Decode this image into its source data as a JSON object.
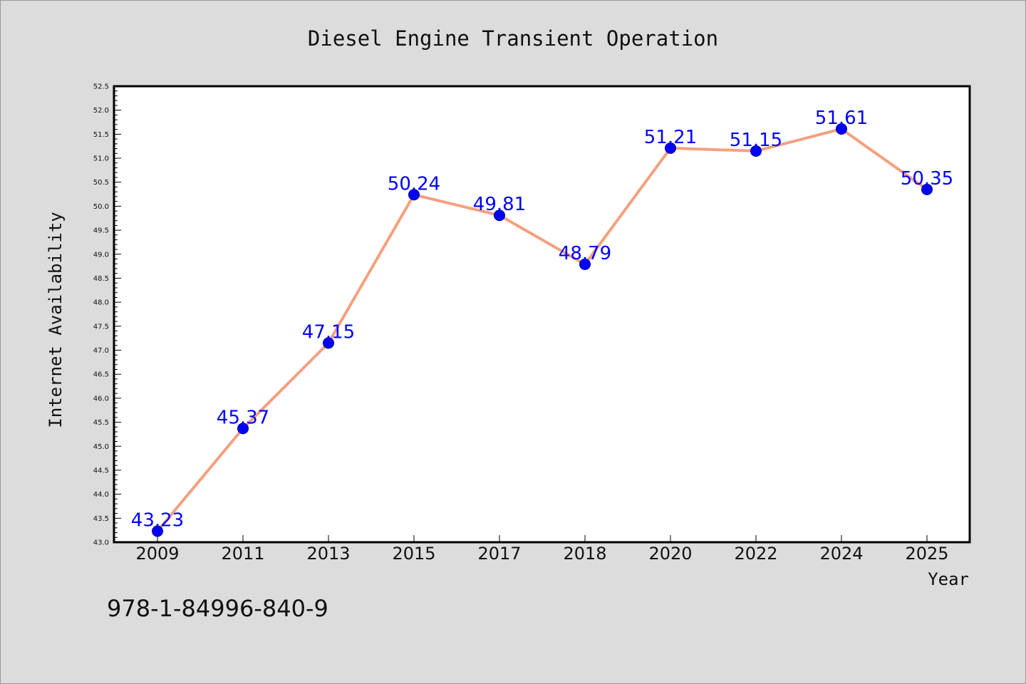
{
  "chart_data": {
    "type": "line",
    "title": "Diesel Engine Transient Operation",
    "xlabel": "Year",
    "ylabel": "Internet Availability",
    "categories": [
      "2009",
      "2011",
      "2013",
      "2015",
      "2017",
      "2018",
      "2020",
      "2022",
      "2024",
      "2025"
    ],
    "series": [
      {
        "values": [
          43.23,
          45.37,
          47.15,
          50.24,
          49.81,
          48.79,
          51.21,
          51.15,
          51.61,
          50.35
        ],
        "labels": [
          "43.23",
          "45.37",
          "47.15",
          "50.24",
          "49.81",
          "48.79",
          "51.21",
          "51.15",
          "51.61",
          "50.35"
        ],
        "line_color": "#f4a07f",
        "marker_color": "#0000ff"
      }
    ],
    "ylim": [
      43.0,
      52.5
    ],
    "yticks": [
      "43.0",
      "43.5",
      "44.0",
      "44.5",
      "45.0",
      "45.5",
      "46.0",
      "46.5",
      "47.0",
      "47.5",
      "48.0",
      "48.5",
      "49.0",
      "49.5",
      "50.0",
      "50.5",
      "51.0",
      "51.5",
      "52.0",
      "52.5"
    ],
    "grid": false,
    "legend": "none"
  },
  "footnote": "978-1-84996-840-9",
  "colors": {
    "background": "#dcdcdc",
    "plot_background": "#ffffff",
    "line": "#f4a07f",
    "marker": "#0000ff",
    "data_label": "#0000ff"
  }
}
